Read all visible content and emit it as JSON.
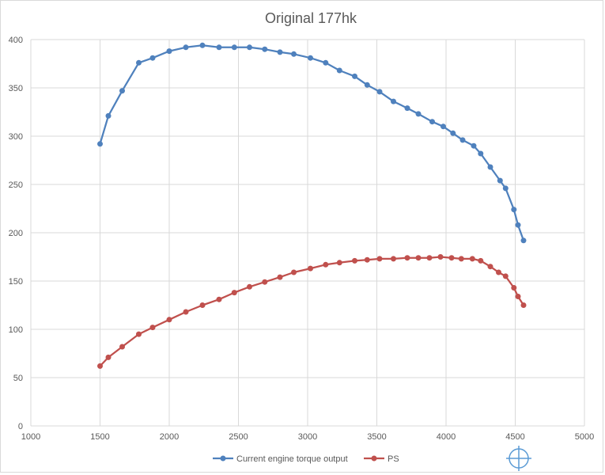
{
  "chart_data": {
    "type": "line",
    "title": "Original 177hk",
    "xlabel": "",
    "ylabel": "",
    "xlim": [
      1000,
      5000
    ],
    "ylim": [
      0,
      400
    ],
    "xticks": [
      1000,
      1500,
      2000,
      2500,
      3000,
      3500,
      4000,
      4500,
      5000
    ],
    "yticks": [
      0,
      50,
      100,
      150,
      200,
      250,
      300,
      350,
      400
    ],
    "grid": true,
    "legend_position": "bottom",
    "series": [
      {
        "name": "Current engine torque output",
        "color": "#4f81bd",
        "points": [
          [
            1500,
            292
          ],
          [
            1560,
            321
          ],
          [
            1660,
            347
          ],
          [
            1780,
            376
          ],
          [
            1880,
            381
          ],
          [
            2000,
            388
          ],
          [
            2120,
            392
          ],
          [
            2240,
            394
          ],
          [
            2360,
            392
          ],
          [
            2470,
            392
          ],
          [
            2580,
            392
          ],
          [
            2690,
            390
          ],
          [
            2800,
            387
          ],
          [
            2900,
            385
          ],
          [
            3020,
            381
          ],
          [
            3130,
            376
          ],
          [
            3230,
            368
          ],
          [
            3340,
            362
          ],
          [
            3430,
            353
          ],
          [
            3520,
            346
          ],
          [
            3620,
            336
          ],
          [
            3720,
            329
          ],
          [
            3800,
            323
          ],
          [
            3900,
            315
          ],
          [
            3980,
            310
          ],
          [
            4050,
            303
          ],
          [
            4120,
            296
          ],
          [
            4200,
            290
          ],
          [
            4250,
            282
          ],
          [
            4320,
            268
          ],
          [
            4390,
            254
          ],
          [
            4430,
            246
          ],
          [
            4490,
            224
          ],
          [
            4520,
            208
          ],
          [
            4560,
            192
          ]
        ]
      },
      {
        "name": "PS",
        "color": "#c0504d",
        "points": [
          [
            1500,
            62
          ],
          [
            1560,
            71
          ],
          [
            1660,
            82
          ],
          [
            1780,
            95
          ],
          [
            1880,
            102
          ],
          [
            2000,
            110
          ],
          [
            2120,
            118
          ],
          [
            2240,
            125
          ],
          [
            2360,
            131
          ],
          [
            2470,
            138
          ],
          [
            2580,
            144
          ],
          [
            2690,
            149
          ],
          [
            2800,
            154
          ],
          [
            2900,
            159
          ],
          [
            3020,
            163
          ],
          [
            3130,
            167
          ],
          [
            3230,
            169
          ],
          [
            3340,
            171
          ],
          [
            3430,
            172
          ],
          [
            3520,
            173
          ],
          [
            3620,
            173
          ],
          [
            3720,
            174
          ],
          [
            3800,
            174
          ],
          [
            3880,
            174
          ],
          [
            3960,
            175
          ],
          [
            4040,
            174
          ],
          [
            4110,
            173
          ],
          [
            4190,
            173
          ],
          [
            4250,
            171
          ],
          [
            4320,
            165
          ],
          [
            4380,
            159
          ],
          [
            4430,
            155
          ],
          [
            4490,
            143
          ],
          [
            4520,
            134
          ],
          [
            4560,
            125
          ]
        ]
      }
    ]
  },
  "corner_icon": "plus-circle-watermark-icon"
}
